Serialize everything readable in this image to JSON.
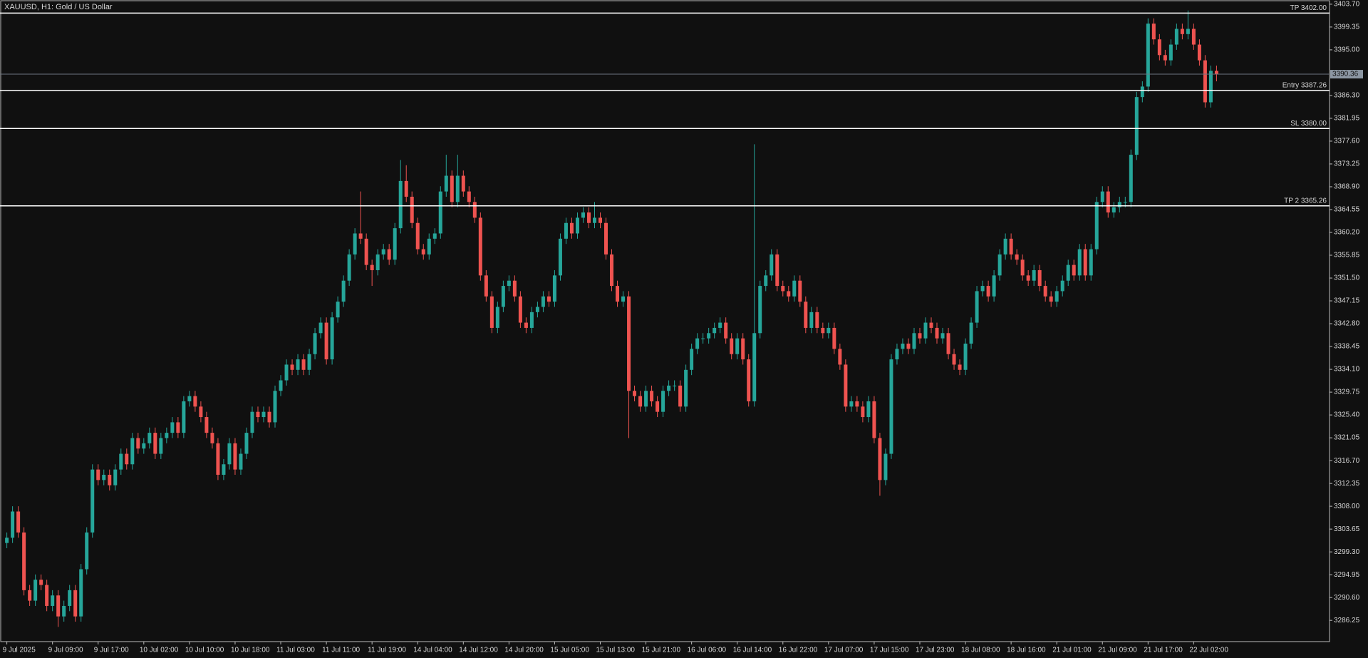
{
  "chart_data": {
    "type": "candlestick",
    "title": "XAUUSD, H1:  Gold / US Dollar",
    "up_color": "#26a69a",
    "down_color": "#ef5350",
    "xlim": [
      -1.2,
      231.8
    ],
    "xticks": [
      {
        "value": 0,
        "label": "9 Jul 2025"
      },
      {
        "value": 8,
        "label": "9 Jul 09:00"
      },
      {
        "value": 16,
        "label": "9 Jul 17:00"
      },
      {
        "value": 24,
        "label": "10 Jul 02:00"
      },
      {
        "value": 32,
        "label": "10 Jul 10:00"
      },
      {
        "value": 40,
        "label": "10 Jul 18:00"
      },
      {
        "value": 48,
        "label": "11 Jul 03:00"
      },
      {
        "value": 56,
        "label": "11 Jul 11:00"
      },
      {
        "value": 64,
        "label": "11 Jul 19:00"
      },
      {
        "value": 72,
        "label": "14 Jul 04:00"
      },
      {
        "value": 80,
        "label": "14 Jul 12:00"
      },
      {
        "value": 88,
        "label": "14 Jul 20:00"
      },
      {
        "value": 96,
        "label": "15 Jul 05:00"
      },
      {
        "value": 104,
        "label": "15 Jul 13:00"
      },
      {
        "value": 112,
        "label": "15 Jul 21:00"
      },
      {
        "value": 120,
        "label": "16 Jul 06:00"
      },
      {
        "value": 128,
        "label": "16 Jul 14:00"
      },
      {
        "value": 136,
        "label": "16 Jul 22:00"
      },
      {
        "value": 144,
        "label": "17 Jul 07:00"
      },
      {
        "value": 152,
        "label": "17 Jul 15:00"
      },
      {
        "value": 160,
        "label": "17 Jul 23:00"
      },
      {
        "value": 168,
        "label": "18 Jul 08:00"
      },
      {
        "value": 176,
        "label": "18 Jul 16:00"
      },
      {
        "value": 184,
        "label": "21 Jul 01:00"
      },
      {
        "value": 192,
        "label": "21 Jul 09:00"
      },
      {
        "value": 200,
        "label": "21 Jul 17:00"
      },
      {
        "value": 208,
        "label": "22 Jul 02:00"
      }
    ],
    "ylim": [
      3282.2,
      3404.5
    ],
    "yticks": [
      {
        "value": 3403.7,
        "label": "3403.70"
      },
      3399.35,
      {
        "value": 3395,
        "label": "3395.00"
      },
      {
        "value": 3386.3,
        "label": "3386.30"
      },
      3381.95,
      {
        "value": 3377.6,
        "label": "3377.60"
      },
      3373.25,
      {
        "value": 3368.9,
        "label": "3368.90"
      },
      3364.55,
      {
        "value": 3360.2,
        "label": "3360.20"
      },
      3355.85,
      {
        "value": 3351.5,
        "label": "3351.50"
      },
      3347.15,
      {
        "value": 3342.8,
        "label": "3342.80"
      },
      3338.45,
      {
        "value": 3334.1,
        "label": "3334.10"
      },
      3329.75,
      {
        "value": 3325.4,
        "label": "3325.40"
      },
      3321.05,
      {
        "value": 3316.7,
        "label": "3316.70"
      },
      3312.35,
      {
        "value": 3308,
        "label": "3308.00"
      },
      3303.65,
      {
        "value": 3299.3,
        "label": "3299.30"
      },
      3294.95,
      {
        "value": 3290.6,
        "label": "3290.60"
      },
      3286.25
    ],
    "current_price": 3390.36,
    "levels": [
      {
        "label": "TP 3402.00",
        "value": 3402
      },
      {
        "label": "Entry 3387.26",
        "value": 3387.26
      },
      {
        "label": "SL 3380.00",
        "value": 3380
      },
      {
        "label": "TP 2 3365.26",
        "value": 3365.26
      }
    ],
    "open": [
      3301,
      3302,
      3307,
      3303,
      3292,
      3290,
      3294,
      3293,
      3289,
      3291,
      3287,
      3289,
      3292,
      3287,
      3296,
      3303,
      3315,
      3313,
      3314,
      3312,
      3315,
      3318,
      3316,
      3321,
      3319,
      3320,
      3322,
      3318,
      3321,
      3322,
      3324,
      3322,
      3328,
      3329,
      3327,
      3325,
      3322,
      3320,
      3314,
      3316,
      3320,
      3315,
      3318,
      3322,
      3326,
      3325,
      3326,
      3324,
      3330,
      3332,
      3335,
      3334,
      3336,
      3334,
      3337,
      3341,
      3343,
      3336,
      3344,
      3347,
      3351,
      3356,
      3360,
      3359,
      3354,
      3353,
      3356,
      3357,
      3355,
      3361,
      3370,
      3367,
      3362,
      3357,
      3356,
      3359,
      3360,
      3368,
      3371,
      3366,
      3371,
      3368,
      3366,
      3363,
      3352,
      3348,
      3342,
      3346,
      3350,
      3351,
      3348,
      3343,
      3342,
      3345,
      3346,
      3348,
      3347,
      3352,
      3359,
      3362,
      3360,
      3363,
      3364,
      3362,
      3363,
      3362,
      3356,
      3350,
      3347,
      3348,
      3330,
      3329,
      3327,
      3330,
      3328,
      3326,
      3330,
      3331,
      3331,
      3327,
      3334,
      3338,
      3340,
      3340,
      3341,
      3342,
      3343,
      3340,
      3337,
      3340,
      3336,
      3328,
      3341,
      3350,
      3352,
      3356,
      3350,
      3349,
      3348,
      3351,
      3347,
      3342,
      3345,
      3342,
      3341,
      3342,
      3338,
      3335,
      3327,
      3328,
      3327,
      3325,
      3328,
      3321,
      3313,
      3318,
      3336,
      3338,
      3339,
      3338,
      3341,
      3340,
      3343,
      3342,
      3340,
      3341,
      3337,
      3335,
      3334,
      3339,
      3343,
      3349,
      3350,
      3348,
      3352,
      3356,
      3359,
      3356,
      3355,
      3352,
      3351,
      3353,
      3350,
      3348,
      3347,
      3349,
      3351,
      3354,
      3352,
      3357,
      3352,
      3357,
      3366,
      3368,
      3364,
      3365,
      3366,
      3366,
      3375,
      3386,
      3388,
      3400,
      3397,
      3394,
      3393,
      3396,
      3399,
      3398,
      3399,
      3396,
      3393,
      3385,
      3391
    ],
    "high": [
      3303,
      3308,
      3308,
      3304,
      3293,
      3295,
      3295,
      3294,
      3292,
      3292,
      3290,
      3293,
      3293,
      3297,
      3304,
      3316,
      3316,
      3315,
      3315,
      3316,
      3319,
      3319,
      3322,
      3322,
      3321,
      3323,
      3323,
      3322,
      3323,
      3325,
      3325,
      3329,
      3330,
      3330,
      3328,
      3326,
      3323,
      3321,
      3317,
      3321,
      3321,
      3319,
      3323,
      3327,
      3327,
      3327,
      3327,
      3331,
      3333,
      3336,
      3336,
      3337,
      3337,
      3338,
      3342,
      3344,
      3344,
      3345,
      3348,
      3352,
      3357,
      3361,
      3368,
      3360,
      3355,
      3357,
      3358,
      3358,
      3362,
      3374,
      3373,
      3368,
      3363,
      3358,
      3360,
      3361,
      3369,
      3375,
      3372,
      3375,
      3372,
      3369,
      3367,
      3364,
      3353,
      3349,
      3347,
      3351,
      3352,
      3352,
      3349,
      3344,
      3346,
      3347,
      3349,
      3349,
      3353,
      3360,
      3363,
      3363,
      3364,
      3365,
      3365,
      3366,
      3364,
      3363,
      3357,
      3351,
      3349,
      3349,
      3331,
      3330,
      3331,
      3331,
      3329,
      3331,
      3332,
      3332,
      3332,
      3335,
      3339,
      3341,
      3341,
      3342,
      3343,
      3344,
      3344,
      3341,
      3341,
      3341,
      3337,
      3377,
      3351,
      3353,
      3357,
      3357,
      3351,
      3350,
      3352,
      3352,
      3348,
      3346,
      3346,
      3343,
      3343,
      3343,
      3339,
      3336,
      3329,
      3329,
      3328,
      3329,
      3329,
      3322,
      3319,
      3337,
      3339,
      3340,
      3340,
      3342,
      3342,
      3344,
      3344,
      3343,
      3342,
      3342,
      3338,
      3336,
      3340,
      3344,
      3350,
      3351,
      3351,
      3353,
      3357,
      3360,
      3360,
      3357,
      3356,
      3353,
      3354,
      3354,
      3351,
      3349,
      3350,
      3352,
      3355,
      3355,
      3358,
      3358,
      3358,
      3367,
      3369,
      3369,
      3366,
      3367,
      3367,
      3376,
      3387,
      3389,
      3401,
      3401,
      3398,
      3395,
      3397,
      3400,
      3400,
      3402.5,
      3400,
      3397,
      3394,
      3392,
      3392
    ],
    "low": [
      3300,
      3301,
      3302,
      3291,
      3289,
      3289,
      3292,
      3288,
      3288,
      3285,
      3286,
      3288,
      3286,
      3286,
      3295,
      3302,
      3312,
      3312,
      3311,
      3311,
      3314,
      3315,
      3315,
      3318,
      3318,
      3319,
      3317,
      3317,
      3320,
      3321,
      3321,
      3321,
      3327,
      3326,
      3324,
      3321,
      3319,
      3313,
      3313,
      3315,
      3314,
      3314,
      3317,
      3321,
      3324,
      3324,
      3323,
      3323,
      3329,
      3331,
      3333,
      3333,
      3333,
      3333,
      3336,
      3340,
      3335,
      3335,
      3343,
      3346,
      3350,
      3355,
      3358,
      3353,
      3350,
      3352,
      3355,
      3354,
      3354,
      3360,
      3366,
      3361,
      3356,
      3355,
      3355,
      3358,
      3359,
      3367,
      3365,
      3365,
      3367,
      3365,
      3362,
      3351,
      3347,
      3341,
      3341,
      3345,
      3349,
      3347,
      3342,
      3341,
      3341,
      3344,
      3345,
      3346,
      3346,
      3351,
      3358,
      3359,
      3359,
      3362,
      3361,
      3361,
      3361,
      3355,
      3349,
      3346,
      3346,
      3321,
      3328,
      3326,
      3326,
      3327,
      3325,
      3325,
      3329,
      3330,
      3326,
      3326,
      3333,
      3337,
      3339,
      3339,
      3340,
      3341,
      3339,
      3336,
      3336,
      3335,
      3327,
      3327,
      3340,
      3349,
      3351,
      3349,
      3348,
      3347,
      3347,
      3346,
      3341,
      3341,
      3341,
      3340,
      3340,
      3337,
      3334,
      3326,
      3326,
      3326,
      3324,
      3324,
      3320,
      3310,
      3312,
      3317,
      3335,
      3337,
      3337,
      3337,
      3339,
      3339,
      3341,
      3339,
      3339,
      3336,
      3334,
      3333,
      3333,
      3338,
      3342,
      3348,
      3347,
      3347,
      3351,
      3355,
      3355,
      3354,
      3351,
      3350,
      3350,
      3349,
      3347,
      3346,
      3346,
      3348,
      3350,
      3351,
      3351,
      3351,
      3351,
      3356,
      3365,
      3363,
      3363,
      3364,
      3365,
      3365,
      3374,
      3385,
      3387,
      3396,
      3393,
      3392,
      3392,
      3395,
      3397,
      3397,
      3395,
      3392,
      3384,
      3384,
      3389
    ],
    "close": [
      3302,
      3307,
      3303,
      3292,
      3290,
      3294,
      3293,
      3289,
      3291,
      3287,
      3289,
      3292,
      3287,
      3296,
      3303,
      3315,
      3313,
      3314,
      3312,
      3315,
      3318,
      3316,
      3321,
      3319,
      3320,
      3322,
      3318,
      3321,
      3322,
      3324,
      3322,
      3328,
      3329,
      3327,
      3325,
      3322,
      3320,
      3314,
      3316,
      3320,
      3315,
      3318,
      3322,
      3326,
      3325,
      3326,
      3324,
      3330,
      3332,
      3335,
      3334,
      3336,
      3334,
      3337,
      3341,
      3343,
      3336,
      3344,
      3347,
      3351,
      3356,
      3360,
      3359,
      3354,
      3353,
      3356,
      3357,
      3355,
      3361,
      3370,
      3367,
      3362,
      3357,
      3356,
      3359,
      3360,
      3368,
      3371,
      3366,
      3371,
      3368,
      3366,
      3363,
      3352,
      3348,
      3342,
      3346,
      3350,
      3351,
      3348,
      3343,
      3342,
      3345,
      3346,
      3348,
      3347,
      3352,
      3359,
      3362,
      3360,
      3363,
      3364,
      3362,
      3363,
      3362,
      3356,
      3350,
      3347,
      3348,
      3330,
      3329,
      3327,
      3330,
      3328,
      3326,
      3330,
      3331,
      3331,
      3327,
      3334,
      3338,
      3340,
      3340,
      3341,
      3342,
      3343,
      3340,
      3337,
      3340,
      3336,
      3328,
      3341,
      3350,
      3352,
      3356,
      3350,
      3349,
      3348,
      3351,
      3347,
      3342,
      3345,
      3342,
      3341,
      3342,
      3338,
      3335,
      3327,
      3328,
      3327,
      3325,
      3328,
      3321,
      3313,
      3318,
      3336,
      3338,
      3339,
      3338,
      3341,
      3340,
      3343,
      3342,
      3340,
      3341,
      3337,
      3335,
      3334,
      3339,
      3343,
      3349,
      3350,
      3348,
      3352,
      3356,
      3359,
      3356,
      3355,
      3352,
      3351,
      3353,
      3350,
      3348,
      3347,
      3349,
      3351,
      3354,
      3352,
      3357,
      3352,
      3357,
      3366,
      3368,
      3364,
      3365,
      3366,
      3366,
      3375,
      3386,
      3388,
      3400,
      3397,
      3394,
      3393,
      3396,
      3399,
      3398,
      3399,
      3396,
      3393,
      3385,
      3391,
      3390.36
    ]
  }
}
